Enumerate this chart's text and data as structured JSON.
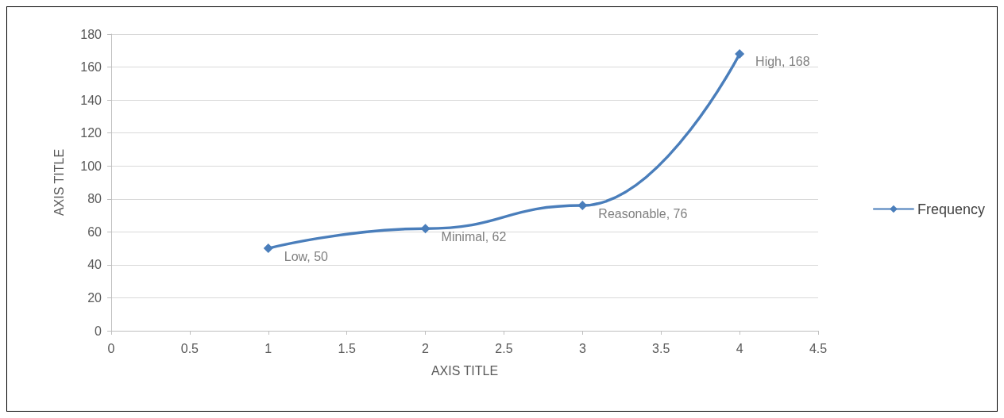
{
  "chart_data": {
    "type": "line",
    "xlabel": "AXIS TITLE",
    "ylabel": "AXIS TITLE",
    "x": [
      1,
      2,
      3,
      4
    ],
    "series": [
      {
        "name": "Frequency",
        "color": "#4a7ebb",
        "values": [
          50,
          62,
          76,
          168
        ],
        "value_labels": [
          "Low, 50",
          "Minimal, 62",
          "Reasonable, 76",
          "High, 168"
        ]
      }
    ],
    "xlim": [
      0,
      4.5
    ],
    "xticks": [
      0,
      0.5,
      1,
      1.5,
      2,
      2.5,
      3,
      3.5,
      4,
      4.5
    ],
    "ylim": [
      0,
      180
    ],
    "yticks": [
      0,
      20,
      40,
      60,
      80,
      100,
      120,
      140,
      160,
      180
    ],
    "grid": "y",
    "legend": "right",
    "marker": "diamond",
    "line_style": "solid"
  }
}
